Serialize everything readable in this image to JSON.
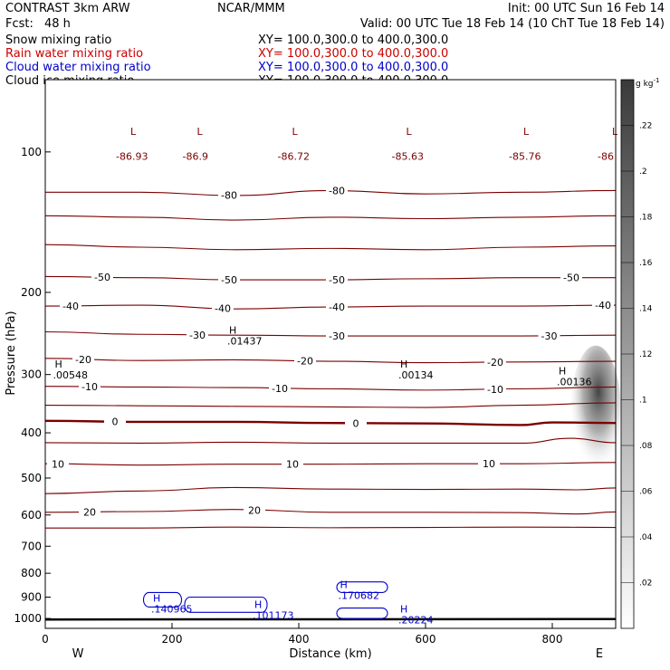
{
  "header": {
    "title": "CONTRAST  3km ARW",
    "center": "NCAR/MMM",
    "init": "Init: 00 UTC Sun 16 Feb 14",
    "fcst_label": "Fcst:",
    "fcst_value": "48 h",
    "valid": "Valid: 00 UTC Tue 18 Feb 14 (10 ChT Tue 18 Feb 14)"
  },
  "fields": [
    {
      "name": "Snow mixing ratio",
      "xy": "XY= 100.0,300.0 to 400.0,300.0",
      "color": "#000000"
    },
    {
      "name": "Rain water mixing ratio",
      "xy": "XY= 100.0,300.0 to 400.0,300.0",
      "color": "#cc0000"
    },
    {
      "name": "Cloud water mixing ratio",
      "xy": "XY= 100.0,300.0 to 400.0,300.0",
      "color": "#0000cc"
    },
    {
      "name": "Cloud ice mixing ratio",
      "xy": "XY= 100.0,300.0 to 400.0,300.0",
      "color": "#000000"
    }
  ],
  "colors": {
    "temperature": "#7a0000",
    "cloud_water": "#0000cc",
    "surface": "#000000"
  },
  "chart_data": {
    "type": "contour",
    "xlabel": "Distance (km)",
    "ylabel": "Pressure (hPa)",
    "xlim": [
      0,
      900
    ],
    "ylim": [
      1050,
      70
    ],
    "y_scale": "log",
    "x_ticks": [
      0,
      200,
      400,
      600,
      800
    ],
    "y_ticks": [
      100,
      200,
      300,
      400,
      500,
      600,
      700,
      800,
      900,
      1000
    ],
    "x_end_labels": {
      "left": "W",
      "right": "E"
    },
    "colorbar": {
      "unit": "g kg",
      "unit_exponent": "-1",
      "ticks": [
        0.02,
        0.04,
        0.06,
        0.08,
        0.1,
        0.12,
        0.14,
        0.16,
        0.18,
        0.2,
        0.22
      ],
      "tick_labels": [
        ".02",
        ".04",
        ".06",
        ".08",
        ".1",
        ".12",
        ".14",
        ".16",
        ".18",
        ".2",
        ".22"
      ],
      "range": [
        0,
        0.24
      ]
    },
    "temperature_contours": [
      {
        "value": -80,
        "points": [
          [
            0,
            122
          ],
          [
            150,
            122
          ],
          [
            300,
            124
          ],
          [
            450,
            121
          ],
          [
            600,
            123
          ],
          [
            750,
            122
          ],
          [
            900,
            121
          ]
        ],
        "labels": [
          {
            "x": 290,
            "text": "-80"
          },
          {
            "x": 460,
            "text": "-80"
          }
        ]
      },
      {
        "value": -70,
        "points": [
          [
            0,
            137
          ],
          [
            150,
            138
          ],
          [
            300,
            140
          ],
          [
            450,
            138
          ],
          [
            600,
            139
          ],
          [
            750,
            138
          ],
          [
            900,
            137
          ]
        ],
        "labels": []
      },
      {
        "value": -60,
        "points": [
          [
            0,
            158
          ],
          [
            150,
            160
          ],
          [
            300,
            162
          ],
          [
            450,
            161
          ],
          [
            600,
            162
          ],
          [
            750,
            160
          ],
          [
            900,
            159
          ]
        ],
        "labels": []
      },
      {
        "value": -50,
        "points": [
          [
            0,
            185
          ],
          [
            150,
            186
          ],
          [
            300,
            188
          ],
          [
            450,
            188
          ],
          [
            600,
            187
          ],
          [
            750,
            186
          ],
          [
            900,
            186
          ]
        ],
        "labels": [
          {
            "x": 90,
            "text": "-50"
          },
          {
            "x": 290,
            "text": "-50"
          },
          {
            "x": 460,
            "text": "-50"
          },
          {
            "x": 830,
            "text": "-50"
          }
        ]
      },
      {
        "value": -40,
        "points": [
          [
            0,
            214
          ],
          [
            150,
            213
          ],
          [
            300,
            217
          ],
          [
            450,
            215
          ],
          [
            600,
            214
          ],
          [
            750,
            214
          ],
          [
            900,
            213
          ]
        ],
        "labels": [
          {
            "x": 40,
            "text": "-40"
          },
          {
            "x": 280,
            "text": "-40"
          },
          {
            "x": 460,
            "text": "-40"
          },
          {
            "x": 880,
            "text": "-40"
          }
        ]
      },
      {
        "value": -30,
        "points": [
          [
            0,
            243
          ],
          [
            150,
            246
          ],
          [
            300,
            247
          ],
          [
            450,
            248
          ],
          [
            600,
            248
          ],
          [
            750,
            248
          ],
          [
            900,
            247
          ]
        ],
        "labels": [
          {
            "x": 240,
            "text": "-30"
          },
          {
            "x": 460,
            "text": "-30"
          },
          {
            "x": 795,
            "text": "-30"
          }
        ]
      },
      {
        "value": -20,
        "points": [
          [
            0,
            277
          ],
          [
            150,
            280
          ],
          [
            300,
            279
          ],
          [
            450,
            281
          ],
          [
            600,
            283
          ],
          [
            750,
            282
          ],
          [
            900,
            281
          ]
        ],
        "labels": [
          {
            "x": 60,
            "text": "-20"
          },
          {
            "x": 410,
            "text": "-20"
          },
          {
            "x": 710,
            "text": "-20"
          }
        ]
      },
      {
        "value": -10,
        "points": [
          [
            0,
            318
          ],
          [
            150,
            319
          ],
          [
            300,
            320
          ],
          [
            450,
            322
          ],
          [
            600,
            324
          ],
          [
            750,
            322
          ],
          [
            900,
            319
          ]
        ],
        "labels": [
          {
            "x": 70,
            "text": "-10"
          },
          {
            "x": 370,
            "text": "-10"
          },
          {
            "x": 710,
            "text": "-10"
          }
        ]
      },
      {
        "value": -5,
        "points": [
          [
            0,
            349
          ],
          [
            150,
            350
          ],
          [
            300,
            351
          ],
          [
            450,
            352
          ],
          [
            600,
            353
          ],
          [
            750,
            349
          ],
          [
            900,
            345
          ]
        ],
        "labels": []
      },
      {
        "value": 0,
        "points": [
          [
            0,
            377
          ],
          [
            150,
            379
          ],
          [
            300,
            379
          ],
          [
            450,
            381
          ],
          [
            600,
            382
          ],
          [
            750,
            385
          ],
          [
            800,
            380
          ],
          [
            900,
            381
          ]
        ],
        "labels": [
          {
            "x": 110,
            "text": "0"
          },
          {
            "x": 490,
            "text": "0"
          }
        ]
      },
      {
        "value": 5,
        "points": [
          [
            0,
            420
          ],
          [
            150,
            421
          ],
          [
            300,
            419
          ],
          [
            450,
            421
          ],
          [
            600,
            421
          ],
          [
            750,
            421
          ],
          [
            830,
            411
          ],
          [
            900,
            420
          ]
        ],
        "labels": []
      },
      {
        "value": 10,
        "points": [
          [
            0,
            466
          ],
          [
            150,
            469
          ],
          [
            300,
            467
          ],
          [
            450,
            467
          ],
          [
            600,
            466
          ],
          [
            750,
            466
          ],
          [
            900,
            463
          ]
        ],
        "labels": [
          {
            "x": 20,
            "text": "10"
          },
          {
            "x": 390,
            "text": "10"
          },
          {
            "x": 700,
            "text": "10"
          }
        ]
      },
      {
        "value": 15,
        "points": [
          [
            0,
            540
          ],
          [
            150,
            533
          ],
          [
            300,
            524
          ],
          [
            450,
            528
          ],
          [
            600,
            529
          ],
          [
            750,
            528
          ],
          [
            840,
            530
          ],
          [
            900,
            525
          ]
        ],
        "labels": []
      },
      {
        "value": 20,
        "points": [
          [
            0,
            592
          ],
          [
            150,
            590
          ],
          [
            300,
            584
          ],
          [
            450,
            592
          ],
          [
            600,
            592
          ],
          [
            750,
            593
          ],
          [
            840,
            597
          ],
          [
            900,
            591
          ]
        ],
        "labels": [
          {
            "x": 70,
            "text": "20"
          },
          {
            "x": 330,
            "text": "20"
          }
        ]
      },
      {
        "value": 25,
        "points": [
          [
            0,
            640
          ],
          [
            150,
            640
          ],
          [
            300,
            637
          ],
          [
            450,
            639
          ],
          [
            600,
            638
          ],
          [
            750,
            637
          ],
          [
            900,
            638
          ]
        ],
        "labels": []
      }
    ],
    "cloud_ice_plume": {
      "x": [
        820,
        900
      ],
      "p_top": 260,
      "p_bottom": 500,
      "max": 0.22
    },
    "extrema": [
      {
        "x": 15,
        "p": 290,
        "kind": "H",
        "text": ".00548",
        "color": "black"
      },
      {
        "x": 290,
        "p": 245,
        "kind": "H",
        "text": ".01437",
        "color": "black"
      },
      {
        "x": 560,
        "p": 290,
        "kind": "H",
        "text": ".00134",
        "color": "black"
      },
      {
        "x": 810,
        "p": 300,
        "kind": "H",
        "text": ".00136",
        "color": "black"
      },
      {
        "x": 170,
        "p": 920,
        "kind": "H",
        "text": ".140965",
        "color": "blue"
      },
      {
        "x": 330,
        "p": 950,
        "kind": "H",
        "text": ".101173",
        "color": "blue"
      },
      {
        "x": 465,
        "p": 860,
        "kind": "H",
        "text": ".170682",
        "color": "blue"
      },
      {
        "x": 560,
        "p": 970,
        "kind": "H",
        "text": ".20224",
        "color": "blue"
      }
    ],
    "low_labels": [
      {
        "x": 120,
        "text": "-86.93"
      },
      {
        "x": 225,
        "text": "-86.9"
      },
      {
        "x": 375,
        "text": "-86.72"
      },
      {
        "x": 555,
        "text": "-85.63"
      },
      {
        "x": 740,
        "text": "-85.76"
      },
      {
        "x": 880,
        "text": "-86"
      }
    ],
    "cloud_water_blobs": [
      {
        "x": [
          155,
          215
        ],
        "p": [
          880,
          945
        ]
      },
      {
        "x": [
          220,
          350
        ],
        "p": [
          900,
          970
        ]
      },
      {
        "x": [
          460,
          540
        ],
        "p": [
          835,
          880
        ]
      },
      {
        "x": [
          460,
          540
        ],
        "p": [
          950,
          1000
        ]
      }
    ]
  }
}
